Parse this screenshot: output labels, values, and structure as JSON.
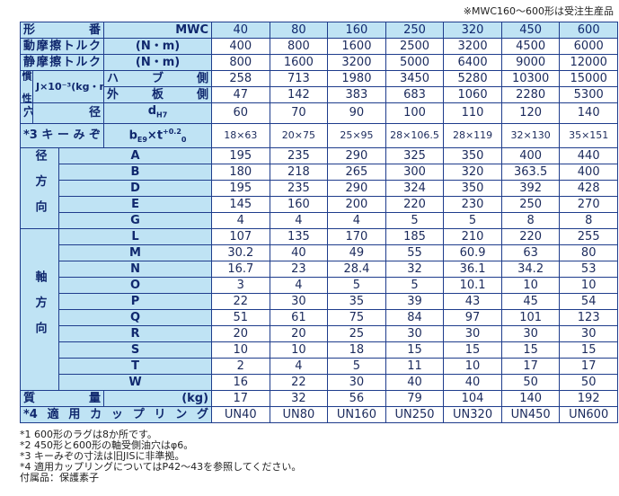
{
  "note": "※MWC160～600形は受注生産品",
  "table": {
    "header": {
      "label": "形　番",
      "model": "MWC",
      "sizes": [
        40,
        80,
        160,
        250,
        320,
        450,
        600
      ]
    },
    "torque": [
      {
        "label": "動摩擦トルク",
        "unit": "(N・m)",
        "values": [
          400,
          800,
          1600,
          2500,
          3200,
          4500,
          6000
        ]
      },
      {
        "label": "静摩擦トルク",
        "unit": "(N・m)",
        "values": [
          800,
          1600,
          3200,
          5000,
          6400,
          9000,
          12000
        ]
      }
    ],
    "inertia": {
      "label": "慣性",
      "unit": "J×10⁻³(kg・m²)",
      "rows": [
        {
          "label": "ハブ側",
          "values": [
            258,
            713,
            1980,
            3450,
            5280,
            10300,
            15000
          ]
        },
        {
          "label": "外板側",
          "values": [
            47,
            142,
            383,
            683,
            1060,
            2280,
            5300
          ]
        }
      ]
    },
    "bore": {
      "label": "穴",
      "label2": "径",
      "symbol": "d",
      "sub": "H7",
      "values": [
        60,
        70,
        90,
        100,
        110,
        120,
        140
      ]
    },
    "keyway": {
      "label": "*3キーみぞ",
      "symbol": "b",
      "sub": "E9",
      "mid": "×t",
      "sup": "+0.2",
      "sub2": "0",
      "values": [
        "18×63",
        "20×75",
        "25×95",
        "28×106.5",
        "28×119",
        "32×130",
        "35×151"
      ]
    },
    "radial": {
      "label": "径方向",
      "rows": [
        {
          "label": "A",
          "values": [
            195,
            235,
            290,
            325,
            350,
            400,
            440
          ]
        },
        {
          "label": "B",
          "values": [
            180,
            218,
            265,
            300,
            320,
            363.5,
            400
          ]
        },
        {
          "label": "D",
          "values": [
            195,
            235,
            290,
            324,
            350,
            392,
            428
          ]
        },
        {
          "label": "E",
          "values": [
            145,
            160,
            200,
            220,
            230,
            250,
            270
          ]
        },
        {
          "label": "G",
          "values": [
            4,
            4,
            4,
            5,
            5,
            8,
            8
          ]
        }
      ]
    },
    "axial": {
      "label": "軸方向",
      "rows": [
        {
          "label": "L",
          "values": [
            107,
            135,
            170,
            185,
            210,
            220,
            255
          ]
        },
        {
          "label": "M",
          "values": [
            30.2,
            40,
            49,
            55,
            60.9,
            63,
            80
          ]
        },
        {
          "label": "N",
          "values": [
            16.7,
            23,
            28.4,
            32,
            36.1,
            34.2,
            53
          ]
        },
        {
          "label": "O",
          "values": [
            3,
            4,
            5,
            5,
            10.1,
            10,
            10
          ]
        },
        {
          "label": "P",
          "values": [
            22,
            30,
            35,
            39,
            43,
            45,
            54
          ]
        },
        {
          "label": "Q",
          "values": [
            51,
            61,
            75,
            84,
            97,
            101,
            123
          ]
        },
        {
          "label": "R",
          "values": [
            20,
            20,
            25,
            30,
            30,
            30,
            30
          ]
        },
        {
          "label": "S",
          "values": [
            10,
            10,
            18,
            15,
            15,
            15,
            15
          ]
        },
        {
          "label": "T",
          "values": [
            2,
            4,
            5,
            11,
            10,
            17,
            17
          ]
        },
        {
          "label": "W",
          "values": [
            16,
            22,
            30,
            40,
            40,
            50,
            50
          ]
        }
      ]
    },
    "mass": {
      "label": "質量",
      "unit": "(kg)",
      "values": [
        17,
        32,
        56,
        79,
        104,
        140,
        192
      ]
    },
    "coupling": {
      "label": "*4適用カップリング",
      "values": [
        "UN40",
        "UN80",
        "UN160",
        "UN250",
        "UN320",
        "UN450",
        "UN600"
      ]
    }
  },
  "footnotes": [
    "*1 600形のラグは8か所です。",
    "*2 450形と600形の軸受側油穴はφ6。",
    "*3 キーみぞの寸法は旧JISに非準拠。",
    "*4 適用カップリングについてはP42～43を参照してください。"
  ],
  "accessory": "付属品：保護素子"
}
